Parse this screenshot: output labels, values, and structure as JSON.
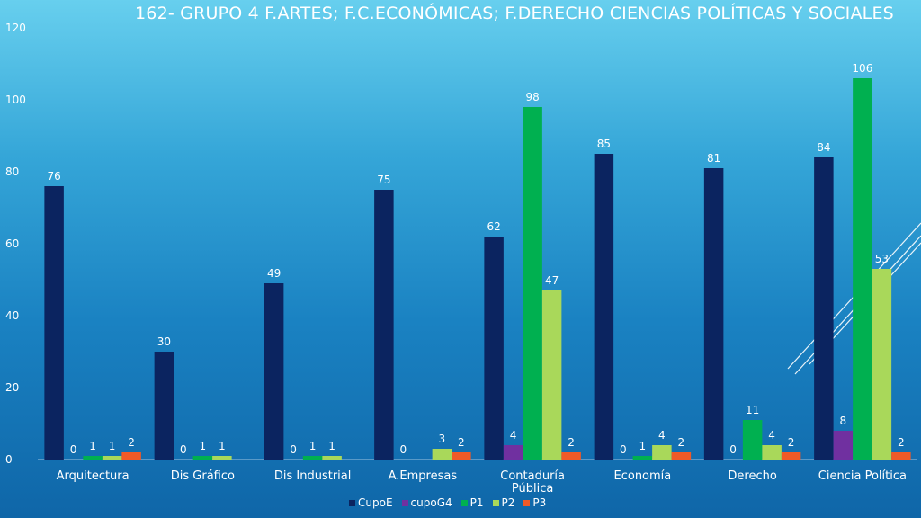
{
  "slide": {
    "title": "162-  GRUPO 4  F.ARTES;  F.C.ECONÓMICAS;  F.DERECHO CIENCIAS POLÍTICAS Y SOCIALES"
  },
  "chart_data": {
    "type": "bar",
    "title": "162-  GRUPO 4  F.ARTES;  F.C.ECONÓMICAS;  F.DERECHO CIENCIAS POLÍTICAS Y SOCIALES",
    "xlabel": "",
    "ylabel": "",
    "ylim": [
      0,
      120
    ],
    "yticks": [
      0,
      20,
      40,
      60,
      80,
      100,
      120
    ],
    "grid": false,
    "legend_position": "bottom",
    "categories": [
      "Arquitectura",
      "Dis Gráfico",
      "Dis Industrial",
      "A.Empresas",
      "Contaduría Pública",
      "Economía",
      "Derecho",
      "Ciencia Política"
    ],
    "series": [
      {
        "name": "CupoE",
        "color": "#0b2460",
        "values": [
          76,
          30,
          49,
          75,
          62,
          85,
          81,
          84
        ],
        "labels": [
          "76",
          "30",
          "49",
          "75",
          "62",
          "85",
          "81",
          "84"
        ]
      },
      {
        "name": "cupoG4",
        "color": "#7030a0",
        "values": [
          0,
          0,
          0,
          0,
          4,
          0,
          0,
          8
        ],
        "labels": [
          "0",
          "0",
          "0",
          "0",
          "4",
          "0",
          "0",
          "8"
        ]
      },
      {
        "name": "P1",
        "color": "#00b050",
        "values": [
          1,
          1,
          1,
          0,
          98,
          1,
          11,
          106
        ],
        "labels": [
          "1",
          "1",
          "1",
          "",
          "98",
          "1",
          "11",
          "106"
        ]
      },
      {
        "name": "P2",
        "color": "#a9d85a",
        "values": [
          1,
          1,
          1,
          3,
          47,
          4,
          4,
          53
        ],
        "labels": [
          "1",
          "1",
          "1",
          "3",
          "47",
          "4",
          "4",
          "53"
        ]
      },
      {
        "name": "P3",
        "color": "#f05a28",
        "values": [
          2,
          0,
          0,
          2,
          2,
          2,
          2,
          2
        ],
        "labels": [
          "2",
          "",
          "",
          "2",
          "2",
          "2",
          "2",
          "2"
        ]
      }
    ]
  }
}
